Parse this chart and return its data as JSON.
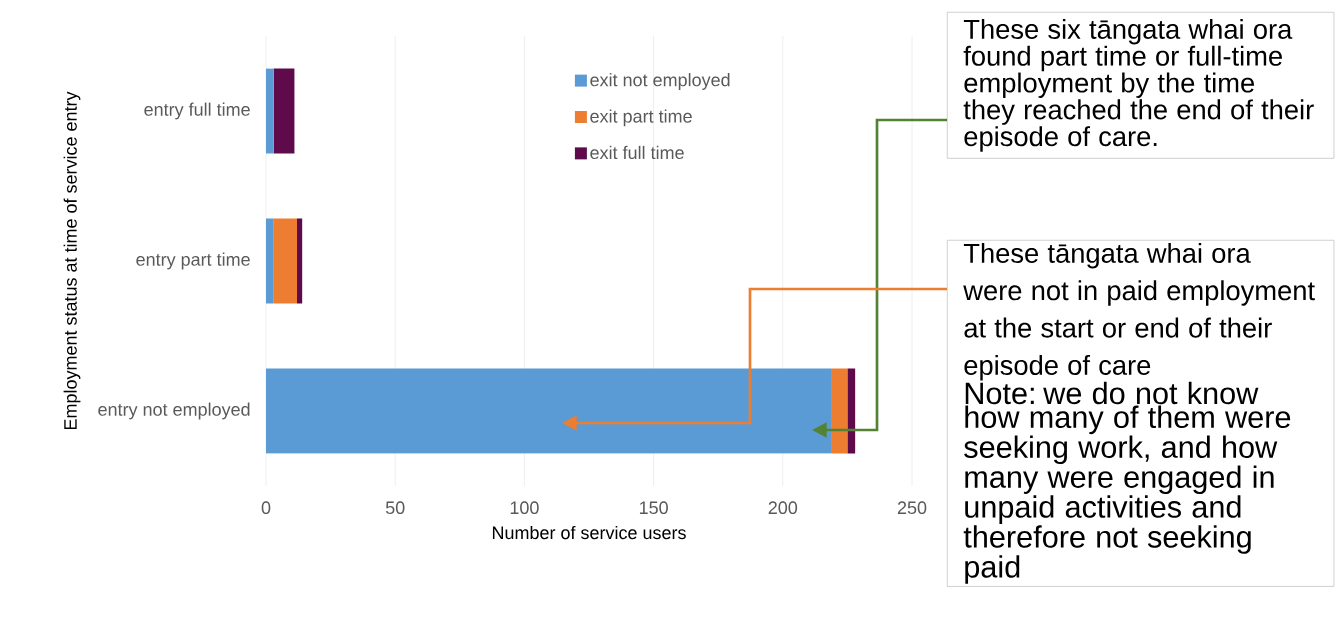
{
  "chart_data": {
    "type": "bar",
    "orientation": "horizontal",
    "stacked": true,
    "categories": [
      "entry full time",
      "entry part time",
      "entry not employed"
    ],
    "series": [
      {
        "name": "exit not employed",
        "color": "#5b9bd5",
        "values": [
          3,
          3,
          219
        ]
      },
      {
        "name": "exit part time",
        "color": "#ed7d31",
        "values": [
          0,
          9,
          6
        ]
      },
      {
        "name": "exit full time",
        "color": "#5e0a4b",
        "values": [
          8,
          2,
          3
        ]
      }
    ],
    "xlabel": "Number of service users",
    "ylabel": "Employment status at time of service entry",
    "xlim": [
      0,
      250
    ],
    "xticks": [
      0,
      50,
      100,
      150,
      200,
      250
    ],
    "grid": "x",
    "legend": "top right",
    "annotations": [
      "These six tāngata whai ora found part time or full-time employment by the time they reached the end of their episode of care.",
      "These tāngata whai ora were not in paid employment at the start or end of their episode of care",
      "Note: we do not know how many of them were seeking work, and how many were engaged in unpaid activities and therefore not seeking paid"
    ]
  }
}
